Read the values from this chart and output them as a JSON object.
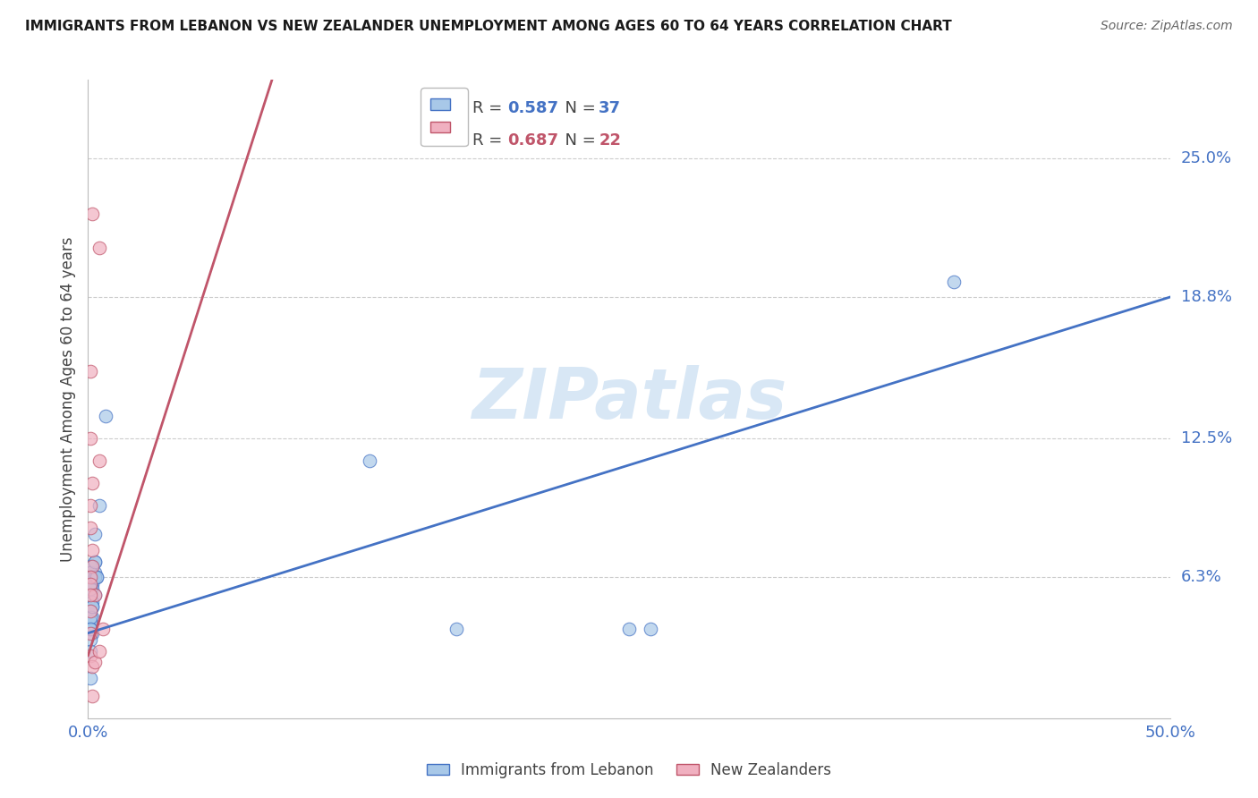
{
  "title": "IMMIGRANTS FROM LEBANON VS NEW ZEALANDER UNEMPLOYMENT AMONG AGES 60 TO 64 YEARS CORRELATION CHART",
  "source": "Source: ZipAtlas.com",
  "ylabel": "Unemployment Among Ages 60 to 64 years",
  "xlim": [
    0.0,
    0.5
  ],
  "ylim": [
    0.0,
    0.285
  ],
  "ytick_labels_right": [
    "25.0%",
    "18.8%",
    "12.5%",
    "6.3%"
  ],
  "ytick_vals_right": [
    0.25,
    0.188,
    0.125,
    0.063
  ],
  "blue_scatter_x": [
    0.008,
    0.005,
    0.003,
    0.003,
    0.002,
    0.003,
    0.004,
    0.002,
    0.002,
    0.003,
    0.002,
    0.002,
    0.001,
    0.002,
    0.001,
    0.001,
    0.002,
    0.001,
    0.001,
    0.001,
    0.001,
    0.001,
    0.001,
    0.001,
    0.001,
    0.001,
    0.001,
    0.002,
    0.002,
    0.003,
    0.004,
    0.003,
    0.13,
    0.17,
    0.25,
    0.26,
    0.4
  ],
  "blue_scatter_y": [
    0.135,
    0.095,
    0.082,
    0.07,
    0.068,
    0.065,
    0.063,
    0.06,
    0.058,
    0.055,
    0.052,
    0.05,
    0.048,
    0.045,
    0.043,
    0.04,
    0.038,
    0.035,
    0.03,
    0.068,
    0.065,
    0.063,
    0.06,
    0.058,
    0.045,
    0.04,
    0.018,
    0.063,
    0.05,
    0.063,
    0.063,
    0.07,
    0.115,
    0.04,
    0.04,
    0.04,
    0.195
  ],
  "pink_scatter_x": [
    0.002,
    0.005,
    0.005,
    0.001,
    0.001,
    0.002,
    0.001,
    0.001,
    0.002,
    0.002,
    0.001,
    0.001,
    0.003,
    0.001,
    0.001,
    0.001,
    0.001,
    0.002,
    0.002,
    0.003,
    0.007,
    0.005
  ],
  "pink_scatter_y": [
    0.225,
    0.21,
    0.115,
    0.155,
    0.125,
    0.105,
    0.095,
    0.085,
    0.075,
    0.068,
    0.063,
    0.06,
    0.055,
    0.055,
    0.048,
    0.038,
    0.028,
    0.023,
    0.01,
    0.025,
    0.04,
    0.03
  ],
  "blue_line_x": [
    0.0,
    0.5
  ],
  "blue_line_y": [
    0.038,
    0.188
  ],
  "pink_line_x": [
    0.0,
    0.085
  ],
  "pink_line_y": [
    0.028,
    0.285
  ],
  "blue_R": "0.587",
  "blue_N": "37",
  "pink_R": "0.687",
  "pink_N": "22",
  "blue_color": "#A8C8E8",
  "pink_color": "#F0B0C0",
  "blue_line_color": "#4472C4",
  "pink_line_color": "#C0556A",
  "legend_label_blue": "Immigrants from Lebanon",
  "legend_label_pink": "New Zealanders",
  "watermark": "ZIPatlas",
  "background_color": "#ffffff",
  "grid_color": "#cccccc"
}
